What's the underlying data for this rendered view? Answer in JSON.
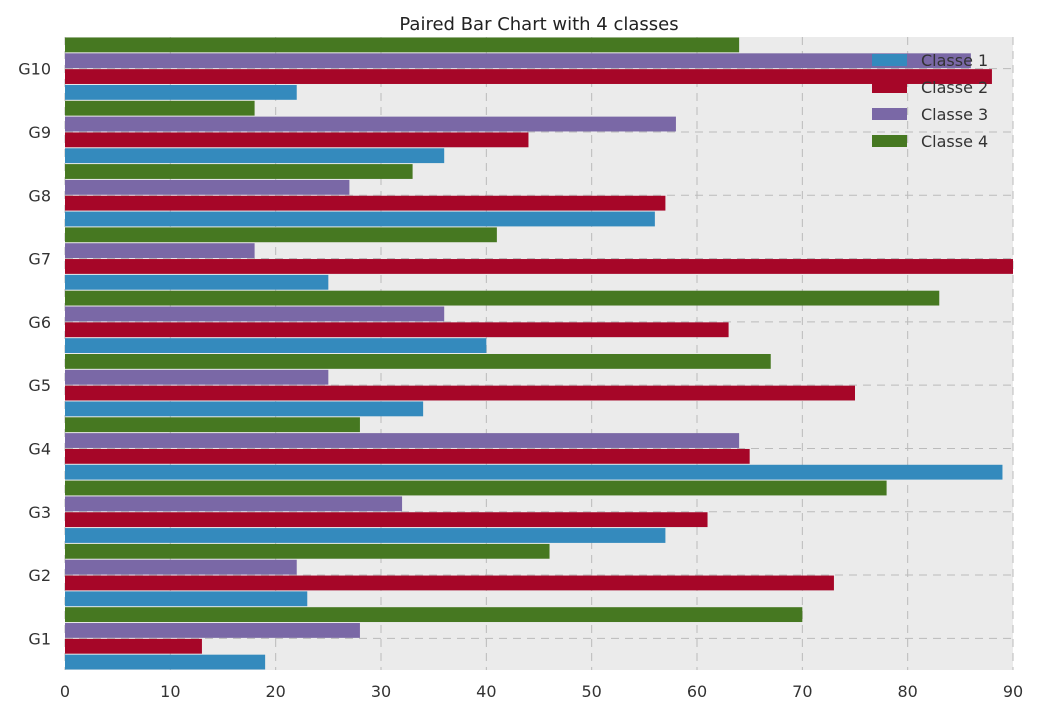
{
  "chart_data": {
    "type": "bar",
    "orientation": "horizontal",
    "title": "Paired Bar Chart with 4 classes",
    "xlabel": "",
    "ylabel": "",
    "categories": [
      "G1",
      "G2",
      "G3",
      "G4",
      "G5",
      "G6",
      "G7",
      "G8",
      "G9",
      "G10"
    ],
    "xlim": [
      0,
      90
    ],
    "xticks": [
      0,
      10,
      20,
      30,
      40,
      50,
      60,
      70,
      80,
      90
    ],
    "grid": true,
    "legend_position": "top-right",
    "background_color": "#ebebeb",
    "series": [
      {
        "name": "Classe 1",
        "color": "#348abd",
        "values": [
          19,
          23,
          57,
          89,
          34,
          40,
          25,
          56,
          36,
          22
        ]
      },
      {
        "name": "Classe 2",
        "color": "#a60628",
        "values": [
          13,
          73,
          61,
          65,
          75,
          63,
          90,
          57,
          44,
          88
        ]
      },
      {
        "name": "Classe 3",
        "color": "#7a68a6",
        "values": [
          28,
          22,
          32,
          64,
          25,
          36,
          18,
          27,
          58,
          86
        ]
      },
      {
        "name": "Classe 4",
        "color": "#467821",
        "values": [
          70,
          46,
          78,
          28,
          67,
          83,
          41,
          33,
          18,
          64
        ]
      }
    ]
  }
}
